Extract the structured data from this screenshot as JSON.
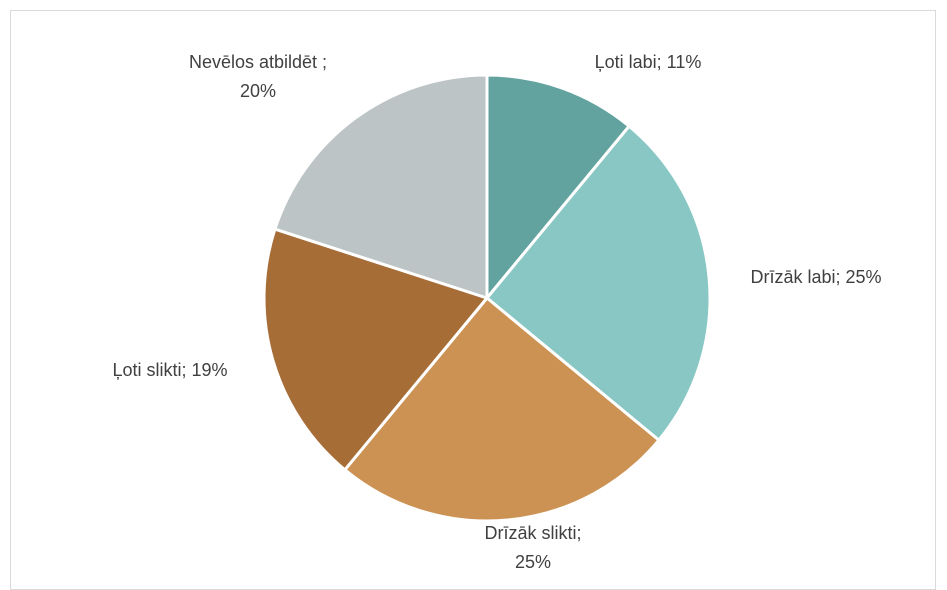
{
  "chart_data": {
    "type": "pie",
    "title": "",
    "slices": [
      {
        "label": "Ļoti labi; 11%",
        "value": 11,
        "color": "#62a39f"
      },
      {
        "label": "Drīzāk labi; 25%",
        "value": 25,
        "color": "#88c7c3"
      },
      {
        "label": "Drīzāk slikti; 25%",
        "value": 25,
        "color": "#cc9254"
      },
      {
        "label": "Ļoti slikti; 19%",
        "value": 19,
        "color": "#a66d37"
      },
      {
        "label": "Nevēlos atbildēt ; 20%",
        "value": 20,
        "color": "#bcc4c6"
      }
    ]
  }
}
